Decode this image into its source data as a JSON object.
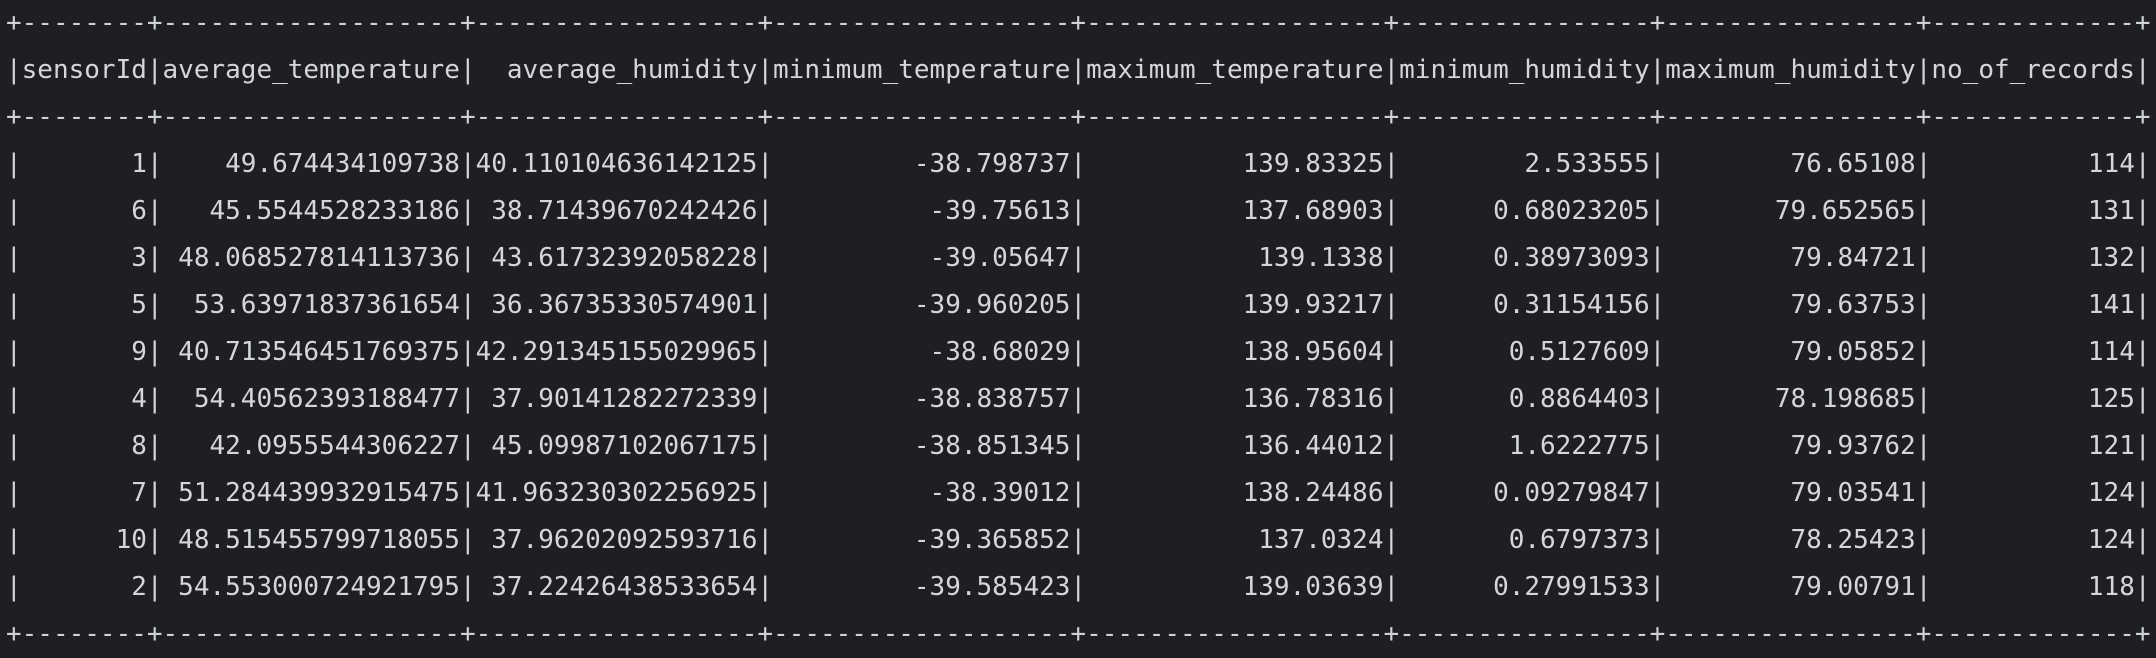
{
  "table": {
    "columns": [
      {
        "key": "sensorId",
        "header": "sensorId",
        "width": 8
      },
      {
        "key": "average_temperature",
        "header": "average_temperature",
        "width": 19
      },
      {
        "key": "average_humidity",
        "header": "average_humidity",
        "width": 18
      },
      {
        "key": "minimum_temperature",
        "header": "minimum_temperature",
        "width": 19
      },
      {
        "key": "maximum_temperature",
        "header": "maximum_temperature",
        "width": 19
      },
      {
        "key": "minimum_humidity",
        "header": "minimum_humidity",
        "width": 16
      },
      {
        "key": "maximum_humidity",
        "header": "maximum_humidity",
        "width": 16
      },
      {
        "key": "no_of_records",
        "header": "no_of_records",
        "width": 13
      }
    ],
    "rows": [
      [
        "1",
        "49.674434109738",
        "40.110104636142125",
        "-38.798737",
        "139.83325",
        "2.533555",
        "76.65108",
        "114"
      ],
      [
        "6",
        "45.5544528233186",
        "38.71439670242426",
        "-39.75613",
        "137.68903",
        "0.68023205",
        "79.652565",
        "131"
      ],
      [
        "3",
        "48.068527814113736",
        "43.61732392058228",
        "-39.05647",
        "139.1338",
        "0.38973093",
        "79.84721",
        "132"
      ],
      [
        "5",
        "53.63971837361654",
        "36.36735330574901",
        "-39.960205",
        "139.93217",
        "0.31154156",
        "79.63753",
        "141"
      ],
      [
        "9",
        "40.713546451769375",
        "42.291345155029965",
        "-38.68029",
        "138.95604",
        "0.5127609",
        "79.05852",
        "114"
      ],
      [
        "4",
        "54.40562393188477",
        "37.90141282272339",
        "-38.838757",
        "136.78316",
        "0.8864403",
        "78.198685",
        "125"
      ],
      [
        "8",
        "42.0955544306227",
        "45.09987102067175",
        "-38.851345",
        "136.44012",
        "1.6222775",
        "79.93762",
        "121"
      ],
      [
        "7",
        "51.284439932915475",
        "41.963230302256925",
        "-38.39012",
        "138.24486",
        "0.09279847",
        "79.03541",
        "124"
      ],
      [
        "10",
        "48.515455799718055",
        "37.96202092593716",
        "-39.365852",
        "137.0324",
        "0.6797373",
        "78.25423",
        "124"
      ],
      [
        "2",
        "54.553000724921795",
        "37.22426438533654",
        "-39.585423",
        "139.03639",
        "0.27991533",
        "79.00791",
        "118"
      ]
    ]
  }
}
